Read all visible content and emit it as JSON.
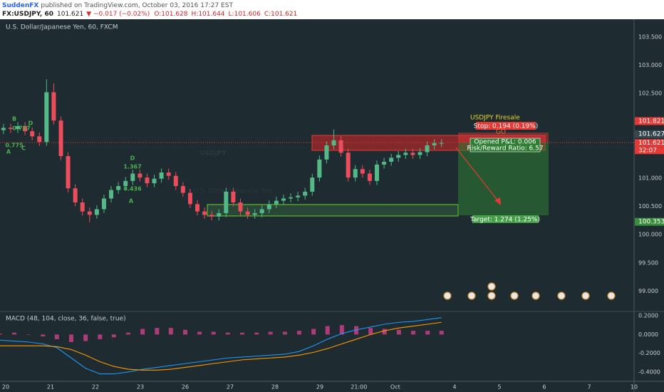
{
  "header": {
    "author": "SuddenFX",
    "published": "published on TradingView.com, October 03, 2016 17:27 EST",
    "symbol": "FX:USDJPY, 60",
    "last": "101.621",
    "change": "▼ −0.017 (−0.02%)",
    "ohlc": [
      "O:101.628",
      "H:101.644",
      "L:101.606",
      "C:101.621"
    ]
  },
  "chart_data": [
    {
      "type": "candlestick",
      "title": "U.S. Dollar/Japanese Yen, 60, FXCM",
      "watermark": [
        "USDJPY",
        "U.S. Dollar/Japanese Yen"
      ],
      "up_color": "#53b987",
      "down_color": "#eb4d5c",
      "grid": true,
      "xlim": [
        -0.127,
        14
      ],
      "ylim": [
        98.64,
        103.8
      ],
      "xticks": [
        {
          "value": 0,
          "label": "20"
        },
        {
          "value": 1,
          "label": "21"
        },
        {
          "value": 2,
          "label": "22"
        },
        {
          "value": 3,
          "label": "23"
        },
        {
          "value": 4,
          "label": "26"
        },
        {
          "value": 5,
          "label": "27"
        },
        {
          "value": 6,
          "label": "28"
        },
        {
          "value": 7,
          "label": "29"
        },
        {
          "value": 7.87,
          "label": "21:00"
        },
        {
          "value": 8.68,
          "label": "Oct"
        },
        {
          "value": 10,
          "label": "4"
        },
        {
          "value": 11,
          "label": "5"
        },
        {
          "value": 12,
          "label": "6"
        },
        {
          "value": 13,
          "label": "7"
        },
        {
          "value": 14,
          "label": "10"
        }
      ],
      "yticks": [
        {
          "value": 99,
          "label": "99.000"
        },
        {
          "value": 99.5,
          "label": "99.500"
        },
        {
          "value": 100,
          "label": "100.000"
        },
        {
          "value": 100.5,
          "label": "100.500"
        },
        {
          "value": 101,
          "label": "101.000"
        },
        {
          "value": 102.5,
          "label": "102.500"
        },
        {
          "value": 103,
          "label": "103.000"
        },
        {
          "value": 103.5,
          "label": "103.500"
        }
      ],
      "x": [
        -0.05,
        0.11,
        0.27,
        0.43,
        0.59,
        0.75,
        0.91,
        1.07,
        1.23,
        1.39,
        1.55,
        1.71,
        1.87,
        2.03,
        2.19,
        2.35,
        2.51,
        2.67,
        2.83,
        2.99,
        3.15,
        3.31,
        3.47,
        3.63,
        3.79,
        3.95,
        4.11,
        4.27,
        4.43,
        4.59,
        4.75,
        4.91,
        5.07,
        5.23,
        5.39,
        5.55,
        5.71,
        5.87,
        6.03,
        6.19,
        6.35,
        6.51,
        6.67,
        6.83,
        6.99,
        7.15,
        7.31,
        7.47,
        7.63,
        7.79,
        7.95,
        8.11,
        8.27,
        8.43,
        8.59,
        8.75,
        8.91,
        9.07,
        9.23,
        9.39,
        9.55,
        9.71
      ],
      "open": [
        101.85,
        101.89,
        101.87,
        101.92,
        101.83,
        101.74,
        101.64,
        102.52,
        102.02,
        101.39,
        100.82,
        100.57,
        100.41,
        100.35,
        100.45,
        100.64,
        100.79,
        100.86,
        100.95,
        101.08,
        101.01,
        100.91,
        100.99,
        101.1,
        101.04,
        100.86,
        100.74,
        100.54,
        100.41,
        100.35,
        100.32,
        100.38,
        100.76,
        100.57,
        100.41,
        100.35,
        100.38,
        100.45,
        100.54,
        100.6,
        100.64,
        100.66,
        100.69,
        100.76,
        101.01,
        101.33,
        101.58,
        101.67,
        101.45,
        101.01,
        101.16,
        101.08,
        100.95,
        101.24,
        101.29,
        101.36,
        101.41,
        101.45,
        101.41,
        101.46,
        101.58,
        101.62
      ],
      "high": [
        101.96,
        101.96,
        101.99,
        101.99,
        101.9,
        101.81,
        102.75,
        102.68,
        102.09,
        101.46,
        100.89,
        100.64,
        100.48,
        100.52,
        100.71,
        100.86,
        100.93,
        101.02,
        101.15,
        101.15,
        101.08,
        101.06,
        101.17,
        101.17,
        101.11,
        100.93,
        100.81,
        100.61,
        100.48,
        100.42,
        100.45,
        100.83,
        100.83,
        100.64,
        100.48,
        100.45,
        100.52,
        100.61,
        100.67,
        100.71,
        100.73,
        100.76,
        100.83,
        101.08,
        101.4,
        101.65,
        101.86,
        101.74,
        101.52,
        101.23,
        101.23,
        101.15,
        101.31,
        101.36,
        101.43,
        101.48,
        101.52,
        101.52,
        101.53,
        101.65,
        101.69,
        101.69
      ],
      "low": [
        101.78,
        101.8,
        101.8,
        101.76,
        101.67,
        101.57,
        101.57,
        101.95,
        101.32,
        100.75,
        100.5,
        100.34,
        100.22,
        100.28,
        100.38,
        100.57,
        100.72,
        100.79,
        100.88,
        100.94,
        100.84,
        100.84,
        100.92,
        100.97,
        100.79,
        100.67,
        100.47,
        100.34,
        100.28,
        100.25,
        100.25,
        100.31,
        100.5,
        100.34,
        100.28,
        100.28,
        100.31,
        100.38,
        100.47,
        100.53,
        100.57,
        100.59,
        100.62,
        100.69,
        100.94,
        101.26,
        101.51,
        101.38,
        100.94,
        100.94,
        101.01,
        100.88,
        100.88,
        101.17,
        101.22,
        101.29,
        101.34,
        101.34,
        101.34,
        101.39,
        101.51,
        101.55
      ],
      "close": [
        101.89,
        101.87,
        101.92,
        101.83,
        101.74,
        101.64,
        102.52,
        102.02,
        101.39,
        100.82,
        100.57,
        100.41,
        100.35,
        100.45,
        100.64,
        100.79,
        100.86,
        100.95,
        101.08,
        101.01,
        100.91,
        100.99,
        101.1,
        101.04,
        100.86,
        100.74,
        100.54,
        100.41,
        100.35,
        100.32,
        100.38,
        100.76,
        100.57,
        100.41,
        100.35,
        100.38,
        100.45,
        100.54,
        100.6,
        100.64,
        100.66,
        100.69,
        100.76,
        101.01,
        101.33,
        101.58,
        101.67,
        101.45,
        101.01,
        101.16,
        101.08,
        100.95,
        101.24,
        101.29,
        101.36,
        101.41,
        101.45,
        101.41,
        101.46,
        101.58,
        101.62,
        101.621
      ],
      "price_badges": [
        {
          "value": 101.821,
          "label": "101.821",
          "color": "#e53935"
        },
        {
          "value": 101.627,
          "label": "101.627",
          "color": "#37474f"
        },
        {
          "value": 101.621,
          "label": "101.621",
          "color": "#e53935"
        },
        {
          "value": 100.353,
          "label": "100.353",
          "color": "#388e3c"
        }
      ],
      "countdown": "32:07",
      "annotations": {
        "idea": "USDJPY Firesale",
        "go": "GO",
        "stop": "Stop: 0.194 (0.19%)",
        "pnl": "Opened P&L: 0.006",
        "rr": "Risk/Reward Ratio: 6.57",
        "target": "Target: 1.274 (1.25%)"
      },
      "pattern_labels": [
        "B",
        "0.727",
        "D",
        "0.775",
        "A",
        "C",
        "D",
        "1.367",
        "0.436",
        "A"
      ]
    },
    {
      "type": "line",
      "title": "MACD (48, 104, close, 36, false, true)",
      "grid": true,
      "xlim": [
        -0.127,
        14
      ],
      "ylim": [
        -0.499,
        0.246
      ],
      "yticks": [
        {
          "value": -0.4,
          "label": "-0.4000"
        },
        {
          "value": -0.2,
          "label": "-0.2000"
        },
        {
          "value": 0,
          "label": "0.0000"
        },
        {
          "value": 0.2,
          "label": "0.2000"
        }
      ],
      "x": [
        -0.13,
        0.19,
        0.51,
        0.83,
        1.14,
        1.46,
        1.78,
        2.1,
        2.41,
        2.73,
        3.05,
        3.37,
        3.68,
        4.0,
        4.32,
        4.63,
        4.95,
        5.27,
        5.59,
        5.9,
        6.22,
        6.54,
        6.86,
        7.17,
        7.49,
        7.81,
        8.13,
        8.44,
        8.76,
        9.08,
        9.4,
        9.71
      ],
      "series": [
        {
          "type": "bar",
          "color": "#b03a7a",
          "values": [
            0.01,
            0.02,
            0.0,
            -0.02,
            -0.05,
            -0.08,
            -0.07,
            -0.05,
            -0.03,
            0.02,
            0.06,
            0.07,
            0.07,
            0.05,
            0.03,
            0.03,
            0.02,
            0.02,
            0.02,
            0.03,
            0.03,
            0.04,
            0.06,
            0.09,
            0.1,
            0.09,
            0.07,
            0.06,
            0.05,
            0.04,
            0.04,
            0.04
          ]
        },
        {
          "type": "line",
          "color": "#2196f3",
          "values": [
            -0.06,
            -0.07,
            -0.08,
            -0.1,
            -0.14,
            -0.25,
            -0.36,
            -0.42,
            -0.42,
            -0.4,
            -0.37,
            -0.35,
            -0.33,
            -0.31,
            -0.29,
            -0.27,
            -0.25,
            -0.24,
            -0.23,
            -0.22,
            -0.21,
            -0.18,
            -0.12,
            -0.05,
            0.01,
            0.05,
            0.08,
            0.11,
            0.13,
            0.14,
            0.16,
            0.18
          ]
        },
        {
          "type": "line",
          "color": "#ff9800",
          "values": [
            -0.12,
            -0.12,
            -0.12,
            -0.12,
            -0.13,
            -0.16,
            -0.22,
            -0.29,
            -0.34,
            -0.37,
            -0.38,
            -0.38,
            -0.37,
            -0.35,
            -0.33,
            -0.31,
            -0.29,
            -0.27,
            -0.26,
            -0.25,
            -0.24,
            -0.22,
            -0.19,
            -0.15,
            -0.1,
            -0.05,
            0.0,
            0.04,
            0.07,
            0.09,
            0.11,
            0.13
          ]
        }
      ]
    }
  ]
}
